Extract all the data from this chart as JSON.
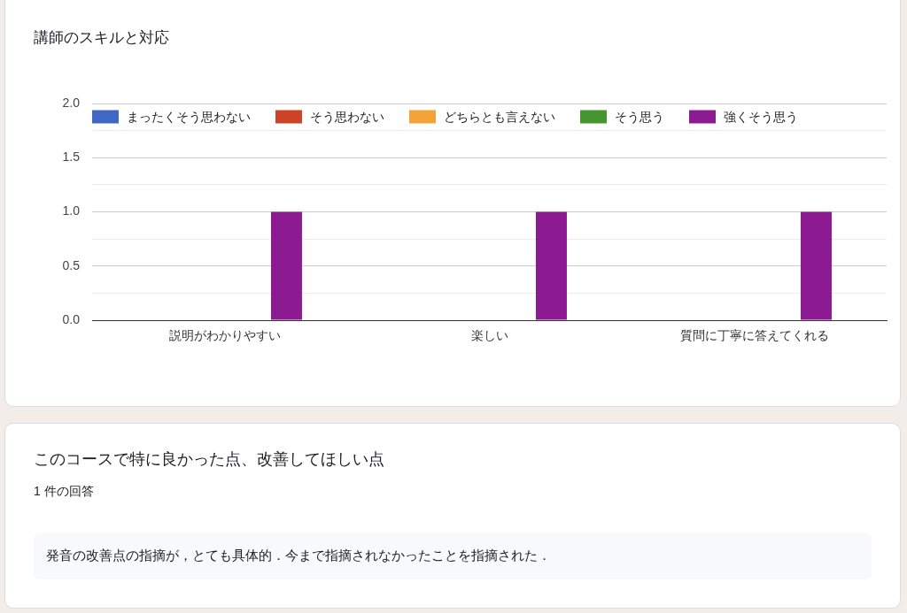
{
  "chart_data": [
    {
      "type": "bar",
      "title": "講師のスキルと対応",
      "categories": [
        "説明がわかりやすい",
        "楽しい",
        "質問に丁寧に答えてくれる"
      ],
      "series": [
        {
          "name": "まったくそう思わない",
          "color": "#4068c7",
          "values": [
            0,
            0,
            0
          ]
        },
        {
          "name": "そう思わない",
          "color": "#cc4328",
          "values": [
            0,
            0,
            0
          ]
        },
        {
          "name": "どちらとも言えない",
          "color": "#f2a33a",
          "values": [
            0,
            0,
            0
          ]
        },
        {
          "name": "そう思う",
          "color": "#46962f",
          "values": [
            0,
            0,
            0
          ]
        },
        {
          "name": "強くそう思う",
          "color": "#8c1a90",
          "values": [
            1,
            1,
            1
          ]
        }
      ],
      "ylim": [
        0,
        2
      ],
      "yticks": [
        {
          "value": 0,
          "label": "0.0"
        },
        {
          "value": 0.25,
          "label": null
        },
        {
          "value": 0.5,
          "label": "0.5"
        },
        {
          "value": 0.75,
          "label": null
        },
        {
          "value": 1,
          "label": "1.0"
        },
        {
          "value": 1.25,
          "label": null
        },
        {
          "value": 1.5,
          "label": "1.5"
        },
        {
          "value": 1.75,
          "label": null
        },
        {
          "value": 2,
          "label": "2.0"
        }
      ],
      "grid": "y",
      "legend": "top"
    },
    {
      "type": "other",
      "title": "このコースで特に良かった点、改善してほしい点",
      "subtitle": "1 件の回答",
      "annotations": [
        "発音の改善点の指摘が，とても具体的．今まで指摘されなかったことを指摘された．"
      ]
    }
  ]
}
